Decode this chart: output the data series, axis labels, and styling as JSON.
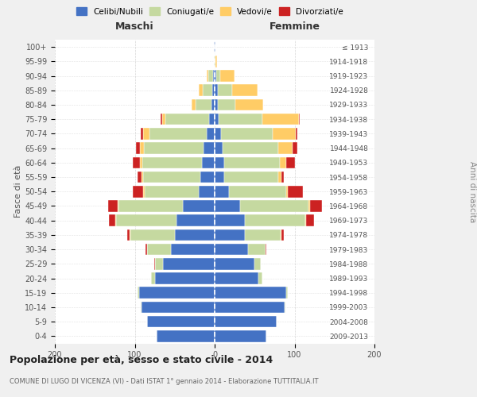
{
  "age_groups": [
    "0-4",
    "5-9",
    "10-14",
    "15-19",
    "20-24",
    "25-29",
    "30-34",
    "35-39",
    "40-44",
    "45-49",
    "50-54",
    "55-59",
    "60-64",
    "65-69",
    "70-74",
    "75-79",
    "80-84",
    "85-89",
    "90-94",
    "95-99",
    "100+"
  ],
  "birth_years": [
    "2009-2013",
    "2004-2008",
    "1999-2003",
    "1994-1998",
    "1989-1993",
    "1984-1988",
    "1979-1983",
    "1974-1978",
    "1969-1973",
    "1964-1968",
    "1959-1963",
    "1954-1958",
    "1949-1953",
    "1944-1948",
    "1939-1943",
    "1934-1938",
    "1929-1933",
    "1924-1928",
    "1919-1923",
    "1914-1918",
    "≤ 1913"
  ],
  "maschi": {
    "celibi": [
      73,
      85,
      92,
      95,
      75,
      65,
      55,
      50,
      48,
      40,
      20,
      18,
      16,
      14,
      10,
      7,
      4,
      3,
      2,
      0,
      1
    ],
    "coniugati": [
      0,
      0,
      1,
      2,
      5,
      10,
      30,
      55,
      75,
      80,
      68,
      72,
      75,
      75,
      72,
      55,
      20,
      12,
      6,
      1,
      0
    ],
    "vedovi": [
      0,
      0,
      0,
      0,
      0,
      0,
      0,
      1,
      1,
      1,
      2,
      2,
      3,
      5,
      8,
      4,
      5,
      5,
      2,
      0,
      0
    ],
    "divorziati": [
      0,
      0,
      0,
      0,
      0,
      1,
      2,
      3,
      8,
      12,
      12,
      5,
      8,
      5,
      3,
      2,
      0,
      0,
      0,
      0,
      0
    ]
  },
  "femmine": {
    "nubili": [
      65,
      78,
      88,
      90,
      55,
      50,
      42,
      38,
      38,
      32,
      18,
      12,
      12,
      10,
      8,
      5,
      4,
      4,
      2,
      0,
      1
    ],
    "coniugate": [
      0,
      0,
      1,
      2,
      5,
      8,
      22,
      45,
      75,
      85,
      72,
      68,
      70,
      70,
      65,
      55,
      22,
      18,
      5,
      1,
      0
    ],
    "vedove": [
      0,
      0,
      0,
      0,
      0,
      0,
      0,
      1,
      1,
      2,
      2,
      4,
      8,
      18,
      28,
      45,
      35,
      32,
      18,
      2,
      0
    ],
    "divorziate": [
      0,
      0,
      0,
      0,
      0,
      0,
      1,
      3,
      10,
      15,
      18,
      3,
      10,
      5,
      2,
      1,
      0,
      0,
      0,
      0,
      0
    ]
  },
  "colors": {
    "celibi": "#4472C4",
    "coniugati": "#C5D9A0",
    "vedovi": "#FFCC66",
    "divorziati": "#CC2222"
  },
  "title": "Popolazione per età, sesso e stato civile - 2014",
  "subtitle": "COMUNE DI LUGO DI VICENZA (VI) - Dati ISTAT 1° gennaio 2014 - Elaborazione TUTTITALIA.IT",
  "xlabel_left": "Maschi",
  "xlabel_right": "Femmine",
  "ylabel_left": "Fasce di età",
  "ylabel_right": "Anni di nascita",
  "xlim": 200,
  "bg_color": "#f0f0f0",
  "plot_bg": "#ffffff",
  "grid_color": "#cccccc"
}
